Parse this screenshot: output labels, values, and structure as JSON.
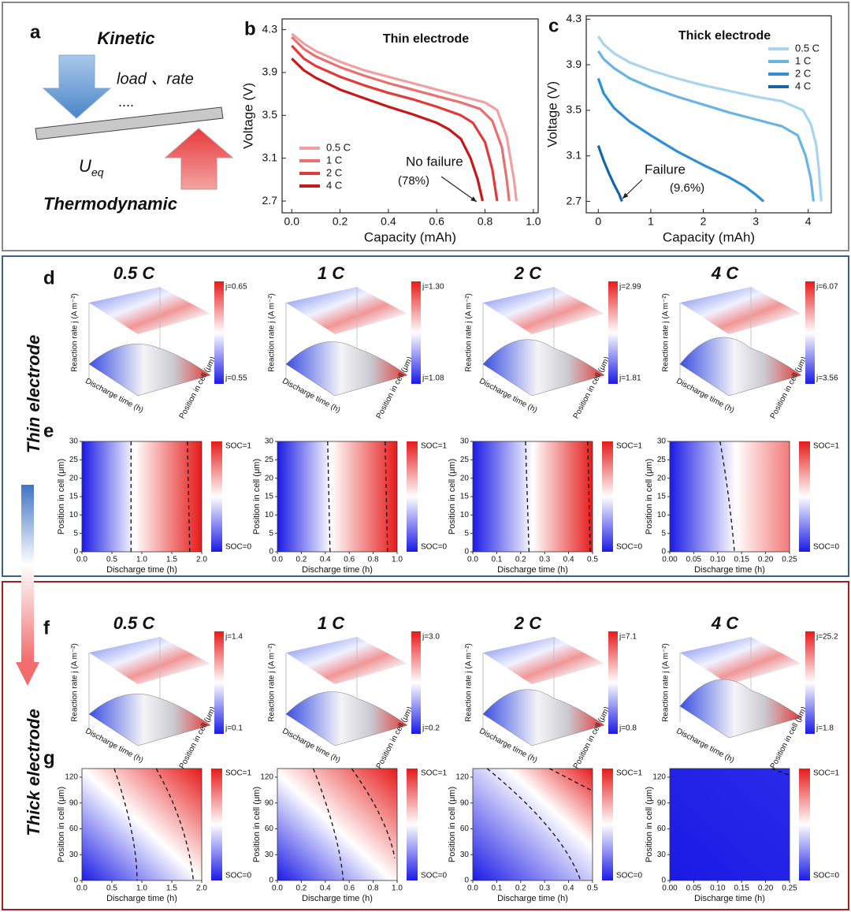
{
  "panel_a": {
    "letter": "a",
    "kinetic": "Kinetic",
    "load_rate": "load 、rate",
    "dots": "....",
    "u": "U",
    "u_sub": "eq",
    "thermodynamic": "Thermodynamic"
  },
  "side_labels": {
    "thin": "Thin electrode",
    "thick": "Thick electrode"
  },
  "chart_data": [
    {
      "type": "line",
      "letter": "b",
      "title": "Thin  electrode",
      "x_label": "Capacity (mAh)",
      "y_label": "Voltage (V)",
      "xlim": [
        -0.04,
        1.02
      ],
      "xticks": [
        {
          "value": 0,
          "label": "0.0"
        },
        0.2,
        0.4,
        0.6,
        0.8,
        {
          "value": 1,
          "label": "1.0"
        }
      ],
      "ylim": [
        2.59,
        4.4
      ],
      "yticks": [
        2.7,
        3.1,
        3.5,
        3.9,
        4.3
      ],
      "annotation": "No failure",
      "annotation_value": "(78%)",
      "legend": "lower left",
      "series": [
        {
          "name": "0.5 C",
          "color": "#f0a0a0",
          "x": [
            0,
            0.05,
            0.1,
            0.2,
            0.3,
            0.4,
            0.5,
            0.6,
            0.7,
            0.8,
            0.85,
            0.89,
            0.92,
            0.93
          ],
          "values": [
            4.26,
            4.17,
            4.1,
            4.0,
            3.92,
            3.86,
            3.8,
            3.74,
            3.68,
            3.62,
            3.55,
            3.3,
            2.9,
            2.7
          ]
        },
        {
          "name": "1 C",
          "color": "#e87070",
          "x": [
            0,
            0.05,
            0.1,
            0.2,
            0.3,
            0.4,
            0.5,
            0.6,
            0.7,
            0.78,
            0.83,
            0.87,
            0.89,
            0.9
          ],
          "values": [
            4.23,
            4.12,
            4.05,
            3.95,
            3.87,
            3.8,
            3.74,
            3.68,
            3.62,
            3.56,
            3.45,
            3.2,
            2.9,
            2.7
          ]
        },
        {
          "name": "2 C",
          "color": "#e03a3a",
          "x": [
            0,
            0.05,
            0.1,
            0.2,
            0.3,
            0.4,
            0.5,
            0.6,
            0.7,
            0.75,
            0.8,
            0.83,
            0.85
          ],
          "values": [
            4.15,
            4.03,
            3.96,
            3.86,
            3.78,
            3.71,
            3.65,
            3.58,
            3.5,
            3.43,
            3.25,
            3.0,
            2.7
          ]
        },
        {
          "name": "4 C",
          "color": "#c8161a",
          "x": [
            0,
            0.05,
            0.1,
            0.2,
            0.3,
            0.4,
            0.5,
            0.6,
            0.65,
            0.7,
            0.74,
            0.77,
            0.79
          ],
          "values": [
            4.03,
            3.92,
            3.85,
            3.74,
            3.66,
            3.58,
            3.51,
            3.43,
            3.37,
            3.28,
            3.1,
            2.9,
            2.7
          ]
        }
      ]
    },
    {
      "type": "line",
      "letter": "c",
      "title": "Thick electrode",
      "x_label": "Capacity (mAh)",
      "y_label": "Voltage (V)",
      "xlim": [
        -0.23,
        4.44
      ],
      "xticks": [
        0,
        1,
        2,
        3,
        4
      ],
      "ylim": [
        2.6,
        4.33
      ],
      "yticks": [
        2.7,
        3.1,
        3.5,
        3.9,
        4.3
      ],
      "annotation": "Failure",
      "annotation_value": "(9.6%)",
      "legend": "upper right",
      "series": [
        {
          "name": "0.5 C",
          "color": "#a8d4f0",
          "x": [
            0,
            0.1,
            0.3,
            0.6,
            1,
            1.5,
            2,
            2.5,
            3,
            3.5,
            3.9,
            4.05,
            4.15,
            4.2,
            4.25
          ],
          "values": [
            4.15,
            4.08,
            4.0,
            3.92,
            3.85,
            3.78,
            3.72,
            3.67,
            3.62,
            3.58,
            3.5,
            3.38,
            3.2,
            3.0,
            2.7
          ]
        },
        {
          "name": "1 C",
          "color": "#6ab4e4",
          "x": [
            0,
            0.1,
            0.3,
            0.6,
            1,
            1.5,
            2,
            2.5,
            3,
            3.5,
            3.8,
            3.95,
            4.05,
            4.1
          ],
          "values": [
            4.02,
            3.95,
            3.87,
            3.78,
            3.7,
            3.62,
            3.55,
            3.48,
            3.42,
            3.36,
            3.28,
            3.1,
            2.9,
            2.7
          ]
        },
        {
          "name": "2 C",
          "color": "#2f8fd6",
          "x": [
            0,
            0.1,
            0.3,
            0.6,
            1,
            1.5,
            2,
            2.5,
            2.8,
            3.0,
            3.15
          ],
          "values": [
            3.78,
            3.65,
            3.52,
            3.4,
            3.28,
            3.14,
            3.02,
            2.91,
            2.83,
            2.76,
            2.7
          ]
        },
        {
          "name": "4 C",
          "color": "#1565a8",
          "x": [
            0,
            0.1,
            0.2,
            0.3,
            0.4,
            0.45
          ],
          "values": [
            3.19,
            3.06,
            2.95,
            2.85,
            2.76,
            2.7
          ]
        }
      ]
    }
  ],
  "panel_d": {
    "letter": "d",
    "z_label": "Reaction rate j (A m⁻²)",
    "x_label": "Discharge time (h)",
    "y_label": "Position in cell (μm)",
    "plots": [
      {
        "rate": "0.5 C",
        "j_max": "j=0.65",
        "j_min": "j=0.55"
      },
      {
        "rate": "1 C",
        "j_max": "j=1.30",
        "j_min": "j=1.08"
      },
      {
        "rate": "2 C",
        "j_max": "j=2.99",
        "j_min": "j=1.81"
      },
      {
        "rate": "4 C",
        "j_max": "j=6.07",
        "j_min": "j=3.56"
      }
    ]
  },
  "panel_e": {
    "letter": "e",
    "x_label": "Discharge time (h)",
    "y_label": "Position in cell (μm)",
    "cbar_top": "SOC=1",
    "cbar_bottom": "SOC=0",
    "plots": [
      {
        "xlim": [
          0,
          2
        ],
        "xticks": [
          {
            "value": 0,
            "label": "0.0"
          },
          0.5,
          {
            "value": 1,
            "label": "1.0"
          },
          1.5,
          {
            "value": 2,
            "label": "2.0"
          }
        ],
        "ylim": [
          0,
          30
        ],
        "yticks": [
          0,
          5,
          10,
          15,
          20,
          25,
          30
        ]
      },
      {
        "xlim": [
          0,
          1
        ],
        "xticks": [
          {
            "value": 0,
            "label": "0.0"
          },
          0.2,
          0.4,
          0.6,
          0.8,
          {
            "value": 1,
            "label": "1.0"
          }
        ],
        "ylim": [
          0,
          30
        ],
        "yticks": [
          0,
          5,
          10,
          15,
          20,
          25,
          30
        ]
      },
      {
        "xlim": [
          0,
          0.5
        ],
        "xticks": [
          {
            "value": 0,
            "label": "0.0"
          },
          0.1,
          0.2,
          0.3,
          0.4,
          0.5
        ],
        "ylim": [
          0,
          30
        ],
        "yticks": [
          0,
          5,
          10,
          15,
          20,
          25,
          30
        ]
      },
      {
        "xlim": [
          0,
          0.25
        ],
        "xticks": [
          {
            "value": 0,
            "label": "0.00"
          },
          0.05,
          {
            "value": 0.1,
            "label": "0.10"
          },
          0.15,
          {
            "value": 0.2,
            "label": "0.20"
          },
          0.25
        ],
        "ylim": [
          0,
          30
        ],
        "yticks": [
          0,
          5,
          10,
          15,
          20,
          25,
          30
        ]
      }
    ]
  },
  "panel_f": {
    "letter": "f",
    "z_label": "Reaction rate j (A m⁻²)",
    "x_label": "Discharge time (h)",
    "y_label": "Position in cell (μm)",
    "plots": [
      {
        "rate": "0.5 C",
        "j_max": "j=1.4",
        "j_min": "j=0.1"
      },
      {
        "rate": "1 C",
        "j_max": "j=3.0",
        "j_min": "j=0.2"
      },
      {
        "rate": "2 C",
        "j_max": "j=7.1",
        "j_min": "j=0.8"
      },
      {
        "rate": "4 C",
        "j_max": "j=25.2",
        "j_min": "j=1.8"
      }
    ]
  },
  "panel_g": {
    "letter": "g",
    "x_label": "Discharge time (h)",
    "y_label": "Position in cell (μm)",
    "cbar_top": "SOC=1",
    "cbar_bottom": "SOC=0",
    "plots": [
      {
        "xlim": [
          0,
          2
        ],
        "xticks": [
          {
            "value": 0,
            "label": "0.0"
          },
          0.5,
          {
            "value": 1,
            "label": "1.0"
          },
          1.5,
          {
            "value": 2,
            "label": "2.0"
          }
        ],
        "ylim": [
          0,
          130
        ],
        "yticks": [
          0,
          30,
          60,
          90,
          120
        ]
      },
      {
        "xlim": [
          0,
          1
        ],
        "xticks": [
          {
            "value": 0,
            "label": "0.0"
          },
          0.2,
          0.4,
          0.6,
          0.8,
          {
            "value": 1,
            "label": "1.0"
          }
        ],
        "ylim": [
          0,
          130
        ],
        "yticks": [
          0,
          30,
          60,
          90,
          120
        ]
      },
      {
        "xlim": [
          0,
          0.5
        ],
        "xticks": [
          {
            "value": 0,
            "label": "0.0"
          },
          0.1,
          0.2,
          0.3,
          0.4,
          0.5
        ],
        "ylim": [
          0,
          130
        ],
        "yticks": [
          0,
          30,
          60,
          90,
          120
        ]
      },
      {
        "xlim": [
          0,
          0.25
        ],
        "xticks": [
          {
            "value": 0,
            "label": "0.00"
          },
          0.05,
          {
            "value": 0.1,
            "label": "0.10"
          },
          0.15,
          {
            "value": 0.2,
            "label": "0.20"
          },
          0.25
        ],
        "ylim": [
          0,
          130
        ],
        "yticks": [
          0,
          30,
          60,
          90,
          120
        ]
      }
    ]
  }
}
